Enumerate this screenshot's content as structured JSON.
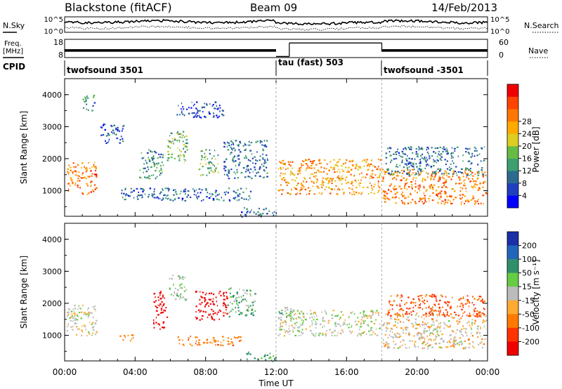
{
  "header": {
    "station": "Blackstone (fitACF)",
    "beam": "Beam 09",
    "date": "14/Feb/2013"
  },
  "noise_panel": {
    "left_label": "N.Sky",
    "right_label": "N.Search",
    "left_ticks": [
      "10^5",
      "10^0"
    ],
    "right_ticks": [
      "10^5",
      "10^0"
    ]
  },
  "freq_panel": {
    "left_label_1": "Freq.",
    "left_label_2": "[MHz]",
    "right_label": "Nave",
    "left_ticks": [
      "18",
      "8"
    ],
    "right_ticks": [
      "60",
      "0"
    ],
    "freq_mhz_segments": [
      {
        "start_h": 0,
        "end_h": 12.0,
        "value": 12
      },
      {
        "start_h": 12.0,
        "end_h": 12.75,
        "value": 8.6
      },
      {
        "start_h": 12.75,
        "end_h": 18.0,
        "value": 16
      },
      {
        "start_h": 18.0,
        "end_h": 24.0,
        "value": 12
      }
    ]
  },
  "cpid": {
    "label": "CPID",
    "segments": [
      {
        "label": "twofsound 3501",
        "start_h": 0,
        "end_h": 12.0
      },
      {
        "label": "tau (fast) 503",
        "start_h": 12.0,
        "end_h": 18.0
      },
      {
        "label": "twofsound -3501",
        "start_h": 18.0,
        "end_h": 24.0
      }
    ]
  },
  "chart_data": [
    {
      "type": "heatmap",
      "name": "power",
      "ylabel": "Slant Range [km]",
      "xlabel": "",
      "xlim": [
        0,
        24
      ],
      "ylim": [
        200,
        4500
      ],
      "yticks": [
        "1000",
        "2000",
        "3000",
        "4000"
      ],
      "colorbar": {
        "label": "Power [dB]",
        "ticks": [
          "4",
          "8",
          "12",
          "16",
          "20",
          "24",
          "28"
        ],
        "colors": [
          "#0000ff",
          "#1f3fbf",
          "#2c6b8f",
          "#3d9e70",
          "#66bb44",
          "#ddcc22",
          "#ffaa00",
          "#ff7700",
          "#ff4400",
          "#ee0000"
        ]
      },
      "echo_regions": [
        {
          "t0": 0.1,
          "t1": 1.8,
          "r0": 900,
          "r1": 1900,
          "value": 24
        },
        {
          "t0": 1.0,
          "t1": 1.7,
          "r0": 3500,
          "r1": 4000,
          "value": 10
        },
        {
          "t0": 2.0,
          "t1": 3.4,
          "r0": 2500,
          "r1": 3100,
          "value": 6
        },
        {
          "t0": 4.2,
          "t1": 5.6,
          "r0": 1400,
          "r1": 2300,
          "value": 10
        },
        {
          "t0": 5.8,
          "t1": 7.0,
          "r0": 1900,
          "r1": 2900,
          "value": 14
        },
        {
          "t0": 7.6,
          "t1": 8.7,
          "r0": 1500,
          "r1": 2300,
          "value": 12
        },
        {
          "t0": 9.0,
          "t1": 11.5,
          "r0": 1400,
          "r1": 2600,
          "value": 8
        },
        {
          "t0": 3.2,
          "t1": 10.6,
          "r0": 700,
          "r1": 1100,
          "value": 7
        },
        {
          "t0": 6.3,
          "t1": 9.0,
          "r0": 3300,
          "r1": 3800,
          "value": 5
        },
        {
          "t0": 10.0,
          "t1": 12.0,
          "r0": 200,
          "r1": 500,
          "value": 8
        },
        {
          "t0": 12.1,
          "t1": 17.9,
          "r0": 900,
          "r1": 2000,
          "value": 22
        },
        {
          "t0": 18.0,
          "t1": 23.9,
          "r0": 600,
          "r1": 1700,
          "value": 24
        },
        {
          "t0": 18.2,
          "t1": 23.8,
          "r0": 1500,
          "r1": 2400,
          "value": 8
        }
      ]
    },
    {
      "type": "heatmap",
      "name": "velocity",
      "ylabel": "Slant Range [km]",
      "xlabel": "Time UT",
      "xlim": [
        0,
        24
      ],
      "ylim": [
        200,
        4500
      ],
      "yticks": [
        "1000",
        "2000",
        "3000",
        "4000"
      ],
      "xticks": [
        "00:00",
        "04:00",
        "08:00",
        "12:00",
        "16:00",
        "20:00",
        "00:00"
      ],
      "colorbar": {
        "label": "Velocity [m s⁻¹]",
        "ticks": [
          "200",
          "100",
          "50",
          "15",
          "-15",
          "-50",
          "-100",
          "-200"
        ],
        "colors": [
          "#1a2fa8",
          "#2266bb",
          "#2f8f6a",
          "#66cc44",
          "#bbbbbb",
          "#ffaa33",
          "#ff7a00",
          "#ff3300",
          "#ee0000"
        ]
      },
      "echo_regions": [
        {
          "t0": 0.1,
          "t1": 1.8,
          "r0": 1000,
          "r1": 2000,
          "value": 0
        },
        {
          "t0": 3.0,
          "t1": 4.0,
          "r0": 850,
          "r1": 1050,
          "value": -50
        },
        {
          "t0": 5.0,
          "t1": 5.8,
          "r0": 1200,
          "r1": 2400,
          "value": -200
        },
        {
          "t0": 5.9,
          "t1": 6.9,
          "r0": 2100,
          "r1": 2900,
          "value": 15
        },
        {
          "t0": 7.4,
          "t1": 9.2,
          "r0": 1500,
          "r1": 2400,
          "value": -200
        },
        {
          "t0": 9.2,
          "t1": 10.8,
          "r0": 1600,
          "r1": 2500,
          "value": 30
        },
        {
          "t0": 6.4,
          "t1": 10.0,
          "r0": 700,
          "r1": 1000,
          "value": -50
        },
        {
          "t0": 10.3,
          "t1": 11.9,
          "r0": 200,
          "r1": 500,
          "value": 40
        },
        {
          "t0": 12.1,
          "t1": 17.9,
          "r0": 1000,
          "r1": 1800,
          "value": 0
        },
        {
          "t0": 12.1,
          "t1": 13.0,
          "r0": 1400,
          "r1": 1900,
          "value": 30
        },
        {
          "t0": 18.0,
          "t1": 23.9,
          "r0": 600,
          "r1": 1700,
          "value": -10
        },
        {
          "t0": 18.2,
          "t1": 23.8,
          "r0": 1600,
          "r1": 2300,
          "value": -80
        }
      ]
    }
  ]
}
